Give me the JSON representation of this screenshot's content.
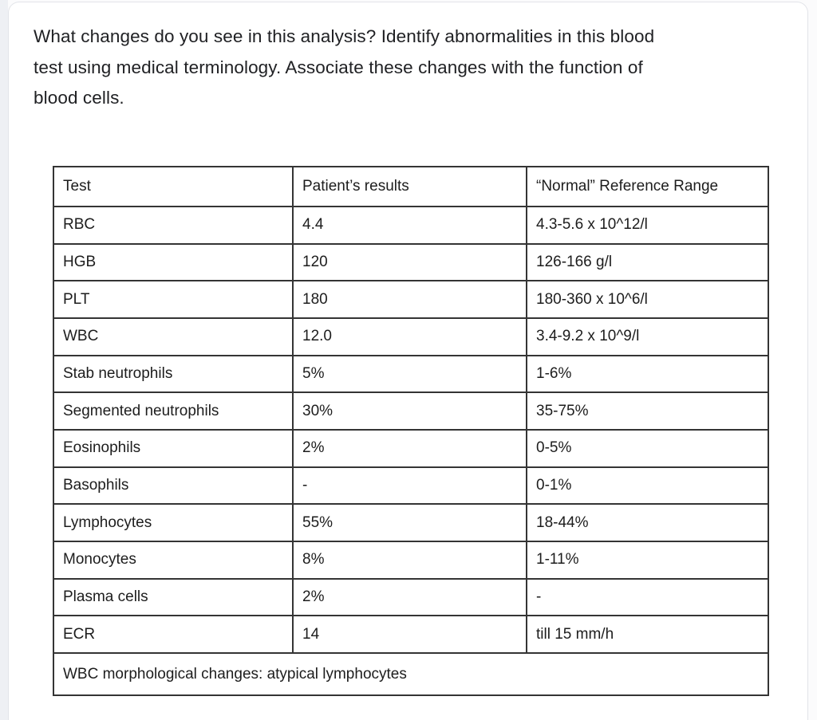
{
  "question": {
    "text": "What changes do you see in this analysis? Identify abnormalities in this blood test using medical terminology. Associate these changes with the function of blood cells.",
    "lines": [
      "What changes do you see in this analysis? Identify abnormalities in this blood",
      "test using medical terminology. Associate these changes with the function of",
      "blood cells."
    ]
  },
  "table": {
    "headers": [
      "Test",
      "Patient’s results",
      "“Normal” Reference Range"
    ],
    "rows": [
      {
        "test": "RBC",
        "result": "4.4",
        "range": "4.3-5.6 x 10^12/l"
      },
      {
        "test": "HGB",
        "result": "120",
        "range": "126-166 g/l"
      },
      {
        "test": "PLT",
        "result": "180",
        "range": "180-360 x 10^6/l"
      },
      {
        "test": "WBC",
        "result": "12.0",
        "range": "3.4-9.2 x 10^9/l"
      },
      {
        "test": "Stab neutrophils",
        "result": "5%",
        "range": "1-6%"
      },
      {
        "test": "Segmented neutrophils",
        "result": "30%",
        "range": "35-75%"
      },
      {
        "test": "Eosinophils",
        "result": "2%",
        "range": "0-5%"
      },
      {
        "test": "Basophils",
        "result": "-",
        "range": "0-1%"
      },
      {
        "test": "Lymphocytes",
        "result": "55%",
        "range": "18-44%"
      },
      {
        "test": "Monocytes",
        "result": "8%",
        "range": "1-11%"
      },
      {
        "test": "Plasma cells",
        "result": "2%",
        "range": "-"
      },
      {
        "test": "ECR",
        "result": "14",
        "range": "till 15 mm/h"
      }
    ],
    "footer": "WBC morphological changes:  atypical lymphocytes"
  },
  "colors": {
    "page_gutter": "#eef0f4",
    "card_background": "#ffffff",
    "card_border": "#e2e4e9",
    "question_text": "#202124",
    "table_text": "#1d1d1d",
    "table_border": "#343434"
  }
}
